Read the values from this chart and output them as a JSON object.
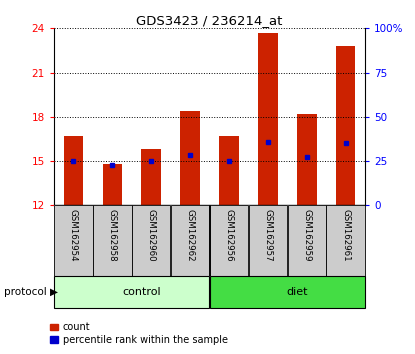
{
  "title": "GDS3423 / 236214_at",
  "samples": [
    "GSM162954",
    "GSM162958",
    "GSM162960",
    "GSM162962",
    "GSM162956",
    "GSM162957",
    "GSM162959",
    "GSM162961"
  ],
  "groups": [
    "control",
    "control",
    "control",
    "control",
    "diet",
    "diet",
    "diet",
    "diet"
  ],
  "bar_tops": [
    16.7,
    14.8,
    15.8,
    18.4,
    16.7,
    23.7,
    18.2,
    22.8
  ],
  "blue_markers": [
    15.0,
    14.7,
    15.0,
    15.4,
    15.0,
    16.3,
    15.3,
    16.2
  ],
  "bar_bottom": 12,
  "ymin": 12,
  "ymax": 24,
  "yticks_left": [
    12,
    15,
    18,
    21,
    24
  ],
  "yticks_right": [
    0,
    25,
    50,
    75,
    100
  ],
  "bar_color": "#CC2200",
  "blue_color": "#0000CC",
  "control_color": "#CCFFCC",
  "diet_color": "#44DD44",
  "label_bg_color": "#CCCCCC",
  "legend_count_label": "count",
  "legend_pct_label": "percentile rank within the sample",
  "protocol_label": "protocol",
  "control_label": "control",
  "diet_label": "diet",
  "bar_width": 0.5
}
